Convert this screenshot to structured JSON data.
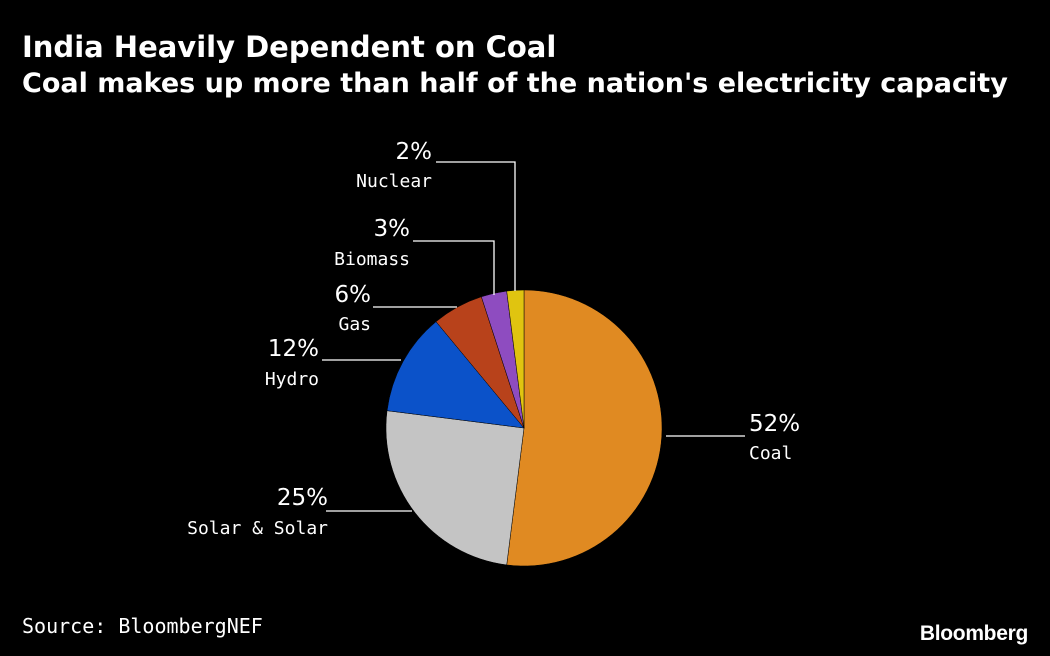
{
  "header": {
    "title": "India Heavily Dependent on Coal",
    "subtitle": "Coal makes up more than half of the nation's electricity capacity"
  },
  "footer": {
    "source": "Source: BloombergNEF",
    "brand": "Bloomberg"
  },
  "chart_data": {
    "type": "pie",
    "title": "India Heavily Dependent on Coal",
    "subtitle": "Coal makes up more than half of the nation's electricity capacity",
    "start_angle_deg": 0,
    "direction": "clockwise",
    "slices": [
      {
        "label": "Coal",
        "value": 52,
        "value_label": "52%",
        "color": "#E08A22",
        "label_side": "right"
      },
      {
        "label": "Solar & Solar",
        "value": 25,
        "value_label": "25%",
        "color": "#C4C4C4",
        "label_side": "left"
      },
      {
        "label": "Hydro",
        "value": 12,
        "value_label": "12%",
        "color": "#0B52C9",
        "label_side": "left"
      },
      {
        "label": "Gas",
        "value": 6,
        "value_label": "6%",
        "color": "#B8421B",
        "label_side": "left"
      },
      {
        "label": "Biomass",
        "value": 3,
        "value_label": "3%",
        "color": "#8E4CC0",
        "label_side": "left"
      },
      {
        "label": "Nuclear",
        "value": 2,
        "value_label": "2%",
        "color": "#E0C410",
        "label_side": "left"
      }
    ]
  }
}
